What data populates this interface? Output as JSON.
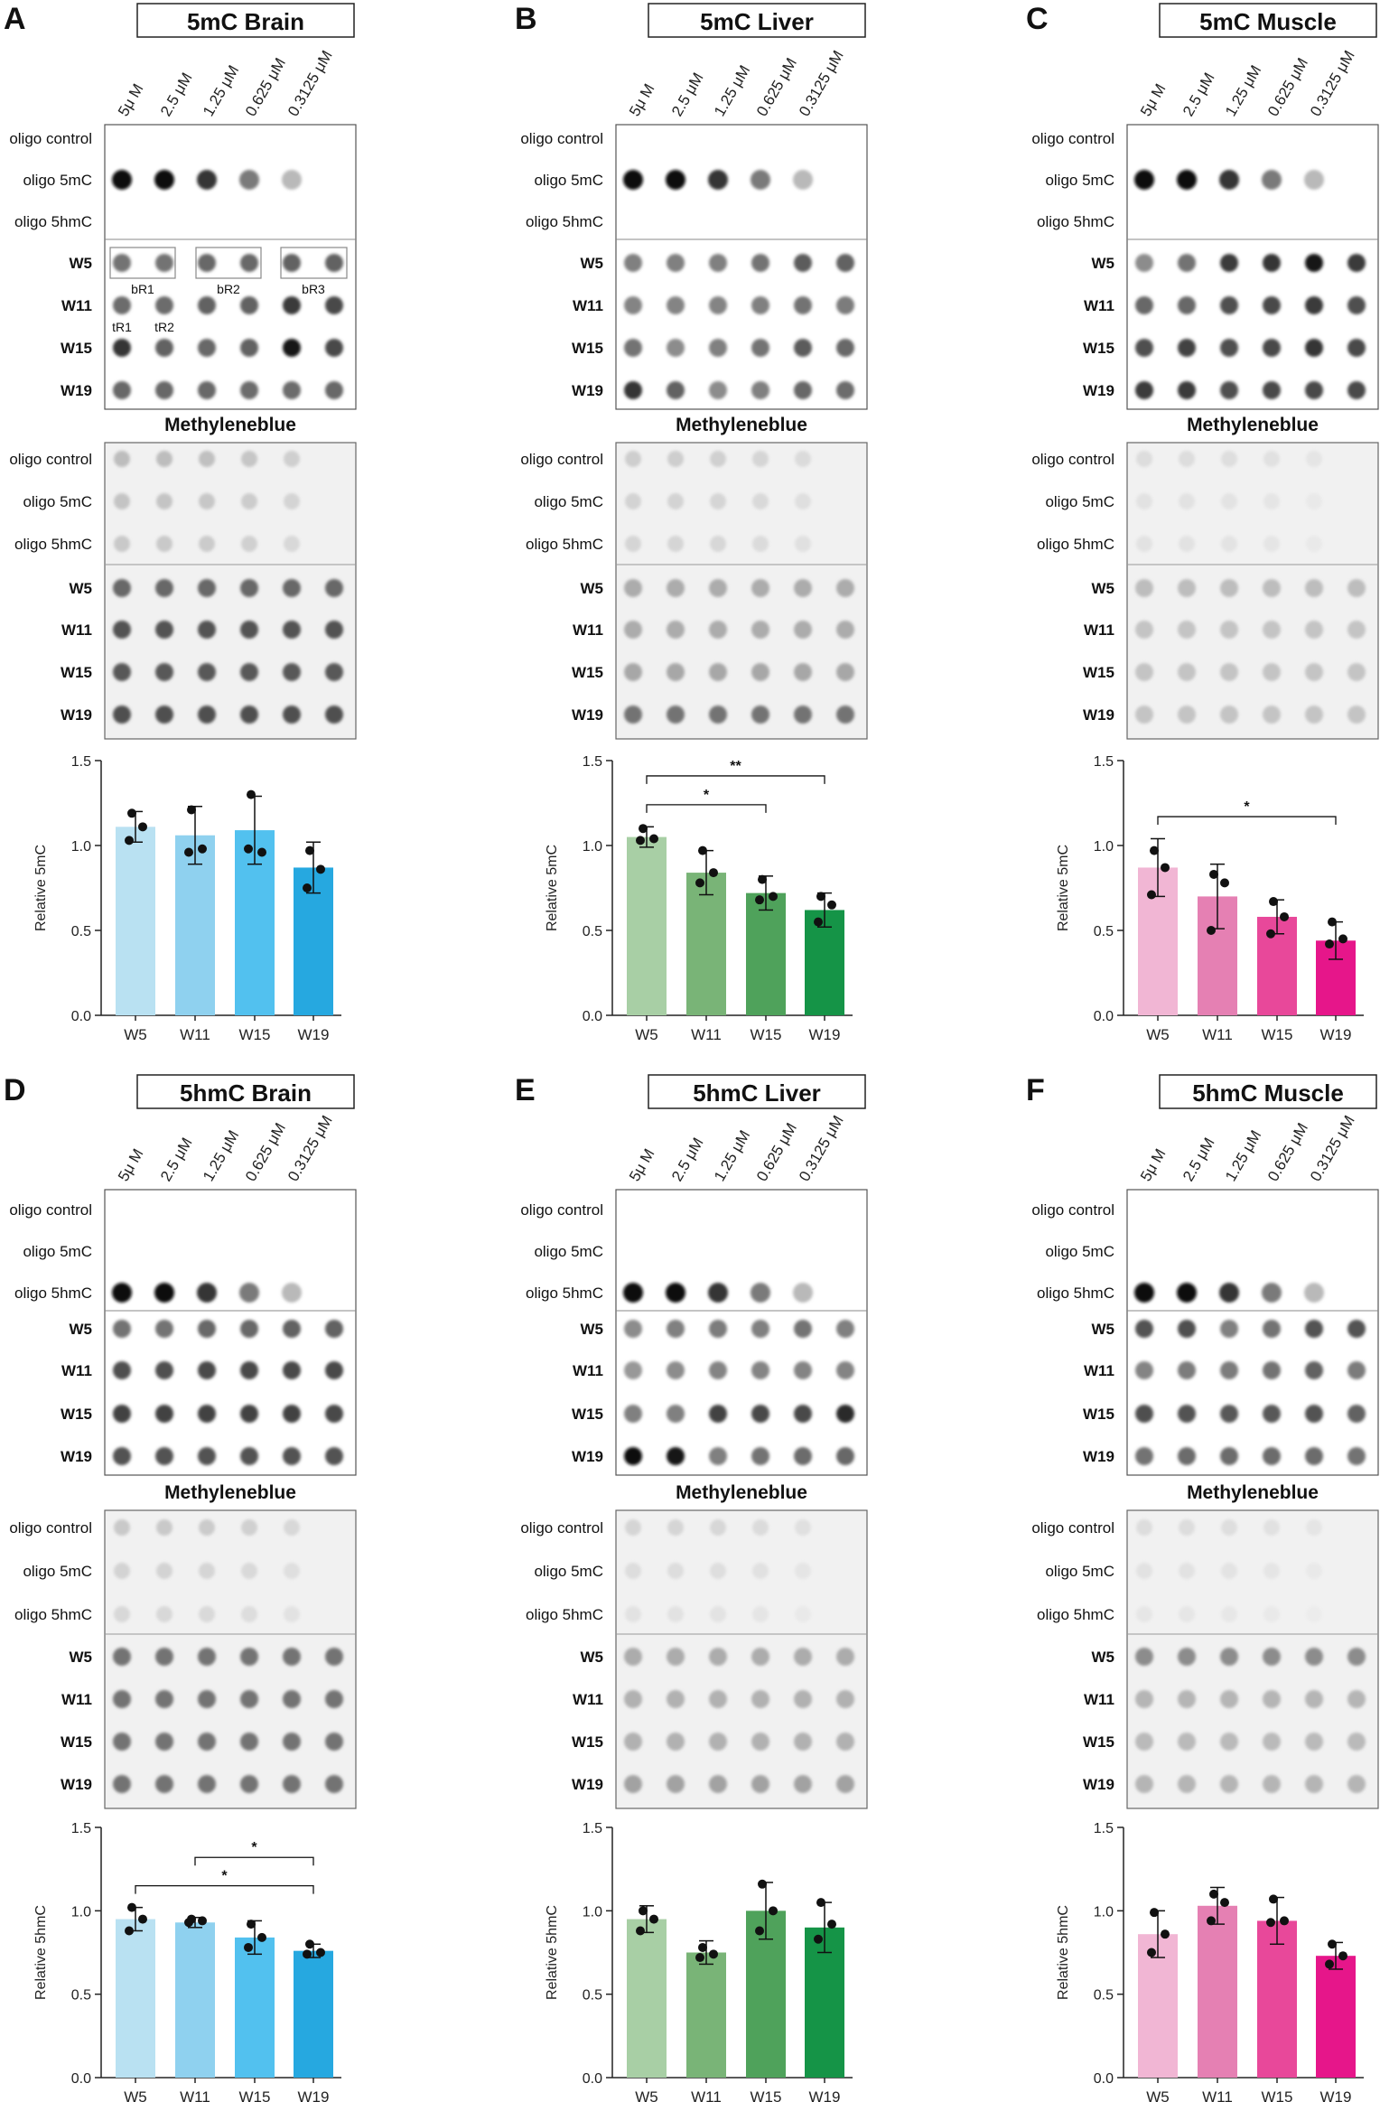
{
  "figure": {
    "row_labels": [
      "oligo control",
      "oligo 5mC",
      "oligo 5hmC",
      "W5",
      "W11",
      "W15",
      "W19"
    ],
    "conc_labels": [
      "5μ M",
      "2.5 μM",
      "1.25 μM",
      "0.625 μM",
      "0.3125 μM"
    ],
    "mb_title": "Methyleneblue",
    "brain_labels": {
      "br1": "bR1",
      "br2": "bR2",
      "br3": "bR3",
      "tr1": "tR1",
      "tr2": "tR2"
    }
  },
  "panels": [
    {
      "letter": "A",
      "title": "5mC Brain",
      "oligo": "5mC",
      "blot_oligo": [
        0.0,
        0.95,
        0.0
      ],
      "blot_w": [
        [
          0.55,
          0.55,
          0.6,
          0.6,
          0.62,
          0.62
        ],
        [
          0.58,
          0.58,
          0.62,
          0.62,
          0.78,
          0.72
        ],
        [
          0.8,
          0.62,
          0.6,
          0.62,
          0.92,
          0.72
        ],
        [
          0.6,
          0.6,
          0.6,
          0.58,
          0.58,
          0.6
        ]
      ],
      "mb_oligo": [
        0.25,
        0.22,
        0.2
      ],
      "mb_w": [
        0.6,
        0.68,
        0.66,
        0.7
      ],
      "bar_color": [
        "#b9e1f2",
        "#8fd1ef",
        "#52c1ef",
        "#26a8e0"
      ],
      "chart_data": {
        "type": "bar",
        "categories": [
          "W5",
          "W11",
          "W15",
          "W19"
        ],
        "values": [
          1.11,
          1.06,
          1.09,
          0.87
        ],
        "err": [
          0.09,
          0.17,
          0.2,
          0.15
        ],
        "points": [
          [
            1.19,
            1.11,
            1.03
          ],
          [
            1.21,
            0.98,
            0.96
          ],
          [
            1.3,
            0.96,
            0.98
          ],
          [
            0.97,
            0.86,
            0.75
          ]
        ],
        "ylabel": "Relative 5mC",
        "ylim": [
          0,
          1.5
        ],
        "yticks": [
          "0.0",
          "0.5",
          "1.0",
          "1.5"
        ],
        "sig": []
      }
    },
    {
      "letter": "B",
      "title": "5mC Liver",
      "oligo": "5mC",
      "blot_oligo": [
        0.0,
        0.95,
        0.0
      ],
      "blot_w": [
        [
          0.5,
          0.5,
          0.5,
          0.55,
          0.65,
          0.62
        ],
        [
          0.48,
          0.48,
          0.48,
          0.5,
          0.55,
          0.52
        ],
        [
          0.55,
          0.45,
          0.5,
          0.55,
          0.65,
          0.6
        ],
        [
          0.8,
          0.62,
          0.45,
          0.5,
          0.6,
          0.58
        ]
      ],
      "mb_oligo": [
        0.18,
        0.16,
        0.15
      ],
      "mb_w": [
        0.32,
        0.32,
        0.34,
        0.55
      ],
      "bar_color": [
        "#a8cfa5",
        "#79b477",
        "#4fa25b",
        "#159447"
      ],
      "chart_data": {
        "type": "bar",
        "categories": [
          "W5",
          "W11",
          "W15",
          "W19"
        ],
        "values": [
          1.05,
          0.84,
          0.72,
          0.62
        ],
        "err": [
          0.06,
          0.13,
          0.1,
          0.1
        ],
        "points": [
          [
            1.1,
            1.04,
            1.03
          ],
          [
            0.97,
            0.84,
            0.78
          ],
          [
            0.8,
            0.7,
            0.68
          ],
          [
            0.7,
            0.65,
            0.55
          ]
        ],
        "ylabel": "Relative 5mC",
        "ylim": [
          0,
          1.5
        ],
        "yticks": [
          "0.0",
          "0.5",
          "1.0",
          "1.5"
        ],
        "sig": [
          {
            "from": 0,
            "to": 2,
            "label": "*"
          },
          {
            "from": 0,
            "to": 3,
            "label": "**"
          }
        ]
      }
    },
    {
      "letter": "C",
      "title": "5mC Muscle",
      "oligo": "5mC",
      "blot_oligo": [
        0.0,
        0.95,
        0.0
      ],
      "blot_w": [
        [
          0.45,
          0.55,
          0.78,
          0.8,
          0.92,
          0.78
        ],
        [
          0.6,
          0.6,
          0.7,
          0.72,
          0.78,
          0.7
        ],
        [
          0.7,
          0.75,
          0.7,
          0.72,
          0.8,
          0.72
        ],
        [
          0.78,
          0.78,
          0.7,
          0.72,
          0.72,
          0.72
        ]
      ],
      "mb_oligo": [
        0.12,
        0.1,
        0.1
      ],
      "mb_w": [
        0.25,
        0.22,
        0.22,
        0.22
      ],
      "bar_color": [
        "#f1b6d4",
        "#e580b3",
        "#e8489a",
        "#e6168a"
      ],
      "chart_data": {
        "type": "bar",
        "categories": [
          "W5",
          "W11",
          "W15",
          "W19"
        ],
        "values": [
          0.87,
          0.7,
          0.58,
          0.44
        ],
        "err": [
          0.17,
          0.19,
          0.1,
          0.11
        ],
        "points": [
          [
            0.97,
            0.87,
            0.71
          ],
          [
            0.83,
            0.78,
            0.5
          ],
          [
            0.67,
            0.58,
            0.48
          ],
          [
            0.55,
            0.45,
            0.42
          ]
        ],
        "ylabel": "Relative 5mC",
        "ylim": [
          0,
          1.5
        ],
        "yticks": [
          "0.0",
          "0.5",
          "1.0",
          "1.5"
        ],
        "sig": [
          {
            "from": 0,
            "to": 3,
            "label": "*"
          }
        ]
      }
    },
    {
      "letter": "D",
      "title": "5hmC Brain",
      "oligo": "5hmC",
      "blot_oligo": [
        0.0,
        0.0,
        0.95
      ],
      "blot_w": [
        [
          0.55,
          0.55,
          0.6,
          0.6,
          0.62,
          0.62
        ],
        [
          0.7,
          0.7,
          0.72,
          0.72,
          0.72,
          0.72
        ],
        [
          0.75,
          0.75,
          0.75,
          0.75,
          0.75,
          0.72
        ],
        [
          0.68,
          0.68,
          0.68,
          0.68,
          0.68,
          0.68
        ]
      ],
      "mb_oligo": [
        0.2,
        0.16,
        0.14
      ],
      "mb_w": [
        0.55,
        0.55,
        0.55,
        0.55
      ],
      "bar_color": [
        "#b9e1f2",
        "#8fd1ef",
        "#52c1ef",
        "#26a8e0"
      ],
      "chart_data": {
        "type": "bar",
        "categories": [
          "W5",
          "W11",
          "W15",
          "W19"
        ],
        "values": [
          0.95,
          0.93,
          0.84,
          0.76
        ],
        "err": [
          0.07,
          0.03,
          0.1,
          0.04
        ],
        "points": [
          [
            1.02,
            0.95,
            0.88
          ],
          [
            0.95,
            0.94,
            0.93
          ],
          [
            0.92,
            0.84,
            0.78
          ],
          [
            0.8,
            0.75,
            0.74
          ]
        ],
        "ylabel": "Relative 5hmC",
        "ylim": [
          0,
          1.5
        ],
        "yticks": [
          "0.0",
          "0.5",
          "1.0",
          "1.5"
        ],
        "sig": [
          {
            "from": 0,
            "to": 3,
            "label": "*"
          },
          {
            "from": 1,
            "to": 3,
            "label": "*"
          }
        ]
      }
    },
    {
      "letter": "E",
      "title": "5hmC Liver",
      "oligo": "5hmC",
      "blot_oligo": [
        0.0,
        0.0,
        0.95
      ],
      "blot_w": [
        [
          0.45,
          0.5,
          0.52,
          0.5,
          0.55,
          0.5
        ],
        [
          0.4,
          0.45,
          0.48,
          0.48,
          0.48,
          0.48
        ],
        [
          0.5,
          0.5,
          0.75,
          0.72,
          0.72,
          0.85
        ],
        [
          0.95,
          0.92,
          0.5,
          0.55,
          0.58,
          0.6
        ]
      ],
      "mb_oligo": [
        0.15,
        0.12,
        0.1
      ],
      "mb_w": [
        0.32,
        0.3,
        0.3,
        0.36
      ],
      "bar_color": [
        "#a8cfa5",
        "#79b477",
        "#4fa25b",
        "#159447"
      ],
      "chart_data": {
        "type": "bar",
        "categories": [
          "W5",
          "W11",
          "W15",
          "W19"
        ],
        "values": [
          0.95,
          0.75,
          1.0,
          0.9
        ],
        "err": [
          0.08,
          0.07,
          0.17,
          0.15
        ],
        "points": [
          [
            1.0,
            0.95,
            0.88
          ],
          [
            0.78,
            0.74,
            0.72
          ],
          [
            1.16,
            1.0,
            0.88
          ],
          [
            1.05,
            0.92,
            0.83
          ]
        ],
        "ylabel": "Relative 5hmC",
        "ylim": [
          0,
          1.5
        ],
        "yticks": [
          "0.0",
          "0.5",
          "1.0",
          "1.5"
        ],
        "sig": []
      }
    },
    {
      "letter": "F",
      "title": "5hmC Muscle",
      "oligo": "5hmC",
      "blot_oligo": [
        0.0,
        0.0,
        0.95
      ],
      "blot_w": [
        [
          0.68,
          0.7,
          0.5,
          0.55,
          0.68,
          0.68
        ],
        [
          0.48,
          0.52,
          0.52,
          0.55,
          0.62,
          0.52
        ],
        [
          0.7,
          0.68,
          0.66,
          0.66,
          0.68,
          0.62
        ],
        [
          0.55,
          0.58,
          0.58,
          0.58,
          0.58,
          0.55
        ]
      ],
      "mb_oligo": [
        0.12,
        0.1,
        0.08
      ],
      "mb_w": [
        0.45,
        0.28,
        0.26,
        0.28
      ],
      "bar_color": [
        "#f1b6d4",
        "#e580b3",
        "#e8489a",
        "#e6168a"
      ],
      "chart_data": {
        "type": "bar",
        "categories": [
          "W5",
          "W11",
          "W15",
          "W19"
        ],
        "values": [
          0.86,
          1.03,
          0.94,
          0.73
        ],
        "err": [
          0.14,
          0.11,
          0.14,
          0.08
        ],
        "points": [
          [
            0.99,
            0.86,
            0.75
          ],
          [
            1.1,
            1.05,
            0.94
          ],
          [
            1.07,
            0.94,
            0.93
          ],
          [
            0.8,
            0.73,
            0.68
          ]
        ],
        "ylabel": "Relative 5hmC",
        "ylim": [
          0,
          1.5
        ],
        "yticks": [
          "0.0",
          "0.5",
          "1.0",
          "1.5"
        ],
        "sig": []
      }
    }
  ]
}
